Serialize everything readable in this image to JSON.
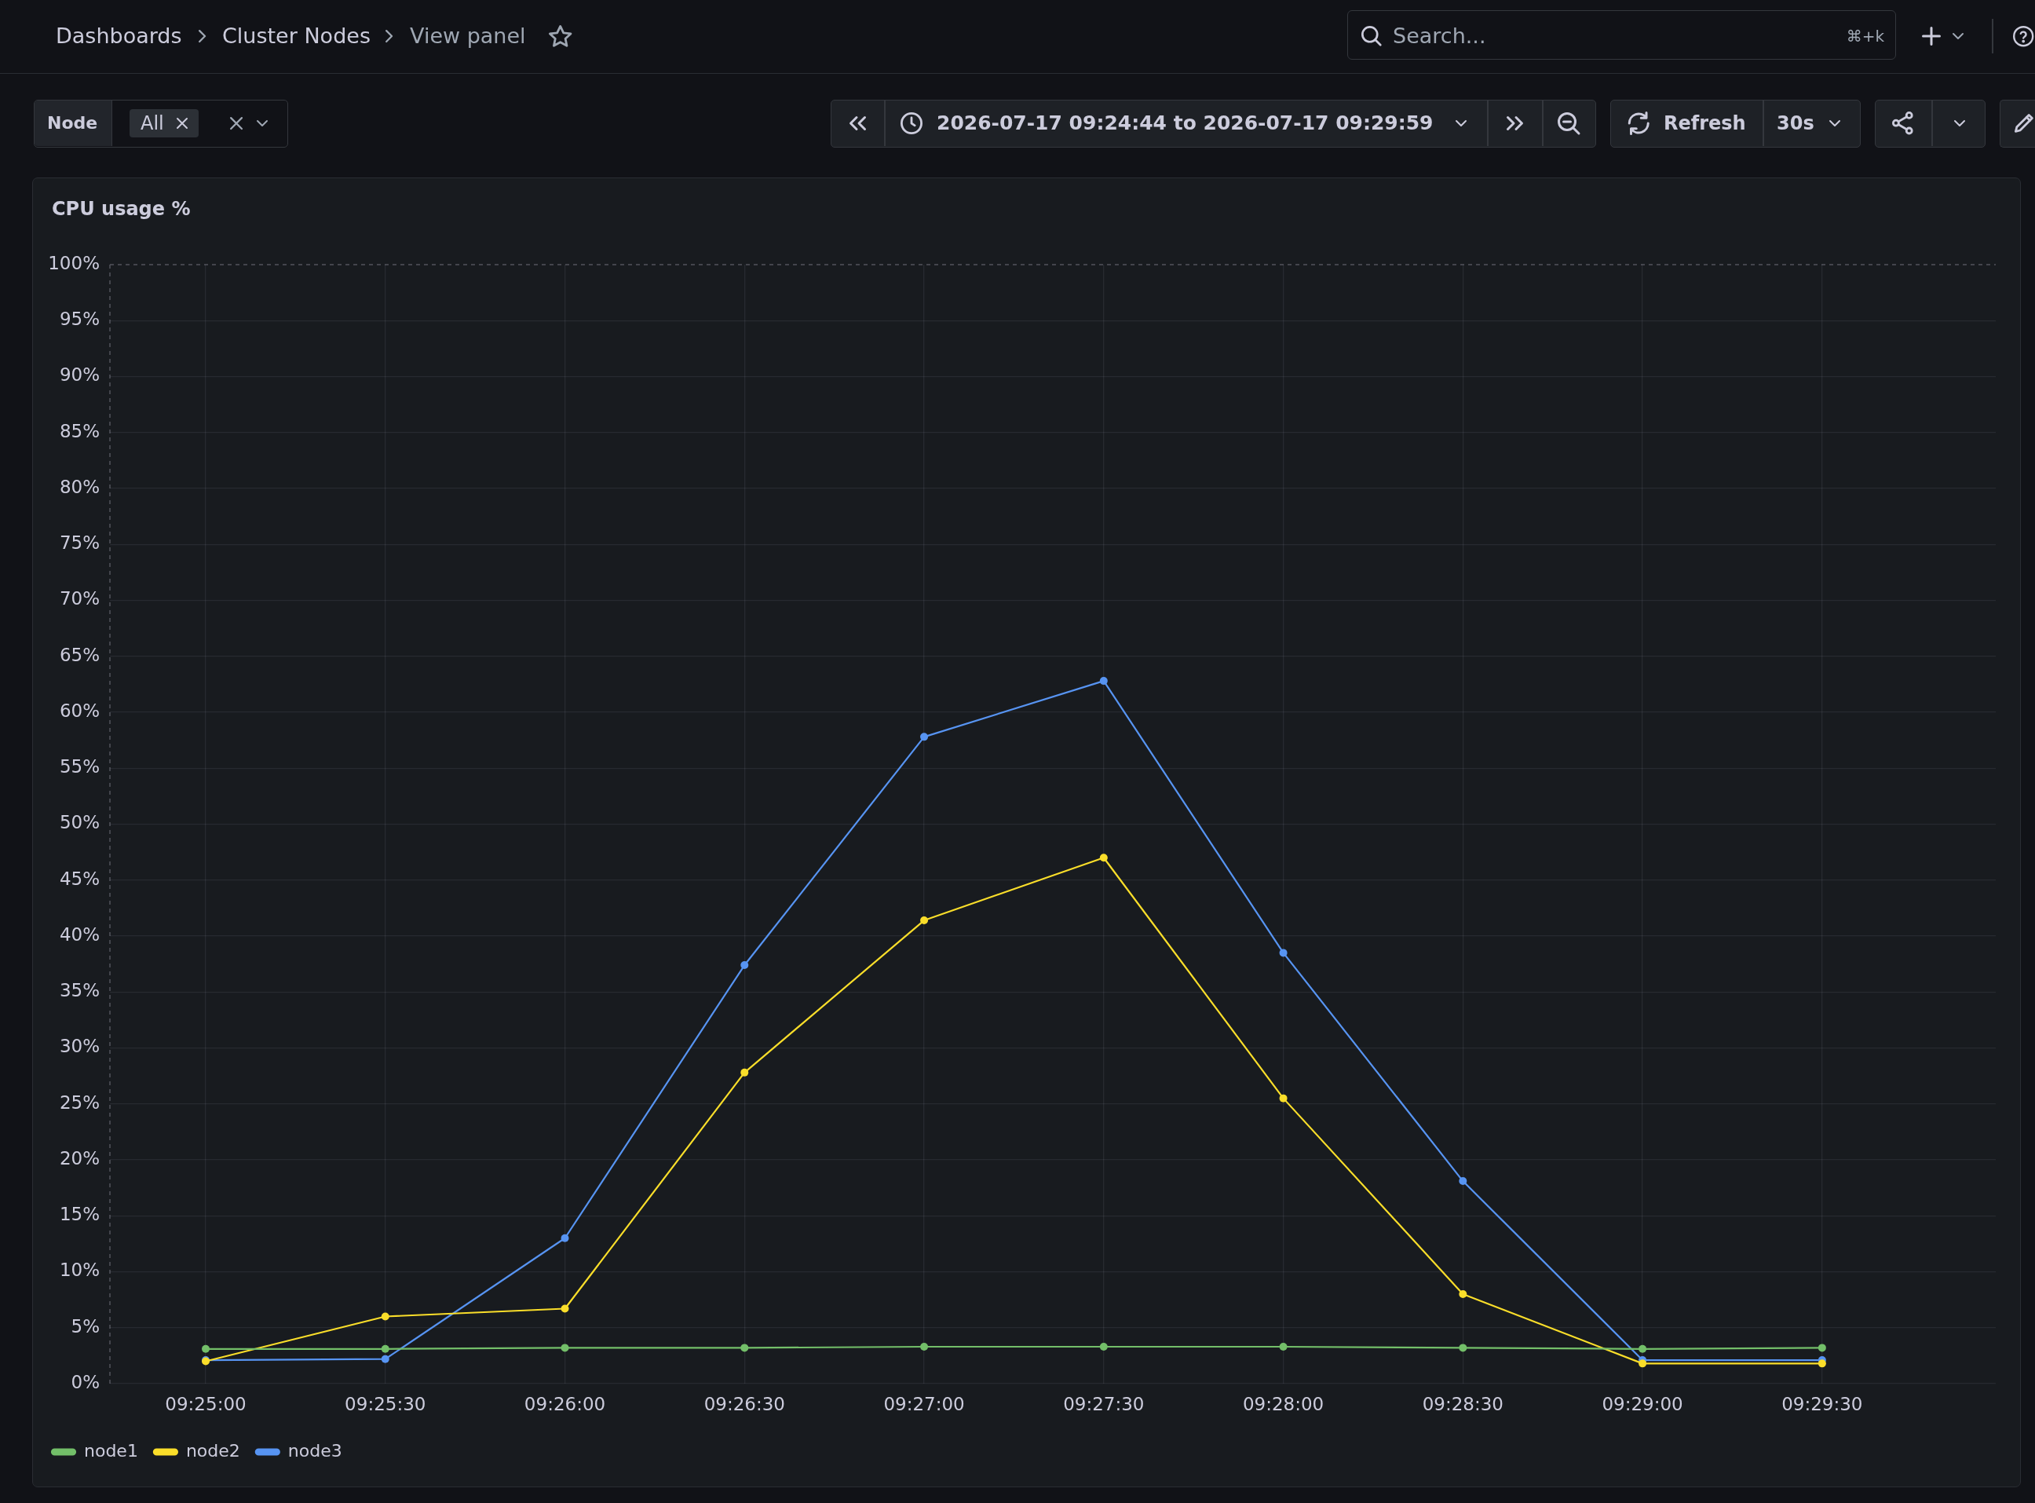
{
  "chart_data": {
    "type": "line",
    "title": "CPU usage %",
    "x": [
      "2026-07-17T09:25:00",
      "2026-07-17T09:25:30",
      "2026-07-17T09:26:00",
      "2026-07-17T09:26:30",
      "2026-07-17T09:27:00",
      "2026-07-17T09:27:30",
      "2026-07-17T09:28:00",
      "2026-07-17T09:28:30",
      "2026-07-17T09:29:00",
      "2026-07-17T09:29:30"
    ],
    "series": [
      {
        "name": "node1",
        "color": "#73bf69",
        "values": [
          3.1,
          3.1,
          3.2,
          3.2,
          3.3,
          3.3,
          3.3,
          3.2,
          3.1,
          3.2
        ]
      },
      {
        "name": "node2",
        "color": "#fade2a",
        "values": [
          2.0,
          6.0,
          6.7,
          27.8,
          41.4,
          47.0,
          25.5,
          8.0,
          1.8,
          1.8
        ]
      },
      {
        "name": "node3",
        "color": "#5794f2",
        "values": [
          2.1,
          2.2,
          13.0,
          37.4,
          57.8,
          62.8,
          38.5,
          18.1,
          2.1,
          2.1
        ]
      }
    ],
    "xlim": [
      "2026-07-17T09:24:44",
      "2026-07-17T09:29:59"
    ],
    "xticks": [
      {
        "value": "2026-07-17T09:25:00",
        "label": "09:25:00"
      },
      {
        "value": "2026-07-17T09:25:30",
        "label": "09:25:30"
      },
      {
        "value": "2026-07-17T09:26:00",
        "label": "09:26:00"
      },
      {
        "value": "2026-07-17T09:26:30",
        "label": "09:26:30"
      },
      {
        "value": "2026-07-17T09:27:00",
        "label": "09:27:00"
      },
      {
        "value": "2026-07-17T09:27:30",
        "label": "09:27:30"
      },
      {
        "value": "2026-07-17T09:28:00",
        "label": "09:28:00"
      },
      {
        "value": "2026-07-17T09:28:30",
        "label": "09:28:30"
      },
      {
        "value": "2026-07-17T09:29:00",
        "label": "09:29:00"
      },
      {
        "value": "2026-07-17T09:29:30",
        "label": "09:29:30"
      }
    ],
    "ylim": [
      0,
      100
    ],
    "yticks": [
      {
        "value": 0,
        "label": "0%"
      },
      {
        "value": 5,
        "label": "5%"
      },
      {
        "value": 10,
        "label": "10%"
      },
      {
        "value": 15,
        "label": "15%"
      },
      {
        "value": 20,
        "label": "20%"
      },
      {
        "value": 25,
        "label": "25%"
      },
      {
        "value": 30,
        "label": "30%"
      },
      {
        "value": 35,
        "label": "35%"
      },
      {
        "value": 40,
        "label": "40%"
      },
      {
        "value": 45,
        "label": "45%"
      },
      {
        "value": 50,
        "label": "50%"
      },
      {
        "value": 55,
        "label": "55%"
      },
      {
        "value": 60,
        "label": "60%"
      },
      {
        "value": 65,
        "label": "65%"
      },
      {
        "value": 70,
        "label": "70%"
      },
      {
        "value": 75,
        "label": "75%"
      },
      {
        "value": 80,
        "label": "80%"
      },
      {
        "value": 85,
        "label": "85%"
      },
      {
        "value": 90,
        "label": "90%"
      },
      {
        "value": 95,
        "label": "95%"
      },
      {
        "value": 100,
        "label": "100%"
      }
    ],
    "grid": true,
    "legend": "bottom left",
    "marker": "circle",
    "line_style": "solid",
    "annotations": [
      "Dashboards",
      "Cluster Nodes",
      "View panel",
      "Search...",
      "⌘+k",
      "Node",
      "All",
      "2026-07-17 09:24:44 to 2026-07-17 09:29:59",
      "Refresh",
      "30s"
    ]
  }
}
